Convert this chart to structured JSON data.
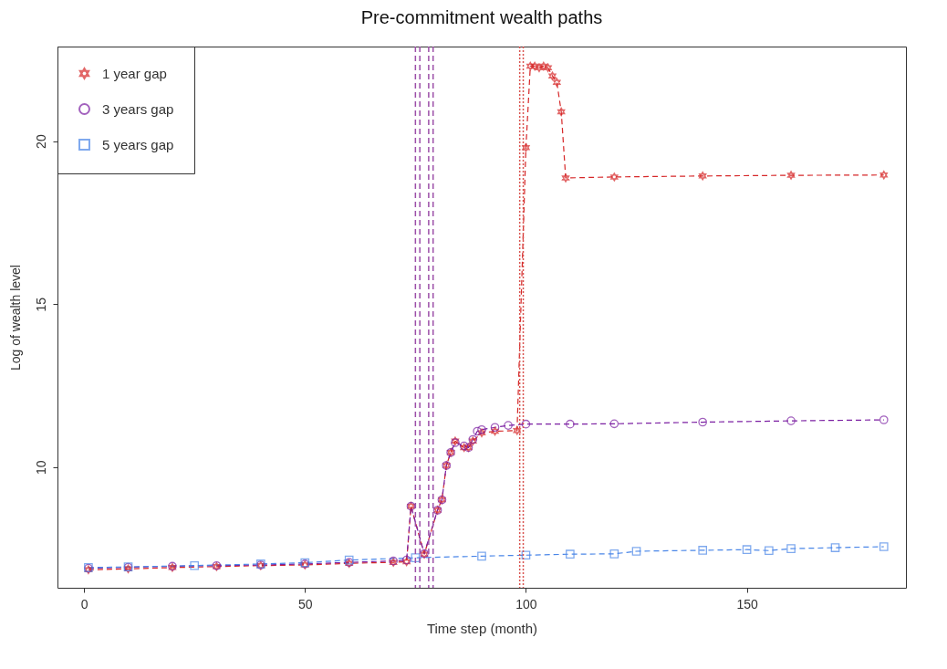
{
  "chart_data": {
    "type": "line",
    "title": "Pre-commitment wealth paths",
    "xlabel": "Time step (month)",
    "ylabel": "Log of wealth level",
    "xlim": [
      -6,
      186
    ],
    "xticks": [
      0,
      50,
      100,
      150
    ],
    "ylim": [
      6.3,
      22.9
    ],
    "yticks": [
      10,
      15,
      20
    ],
    "grid": false,
    "legend": "top left",
    "line_style": "dashed",
    "series": [
      {
        "name": "1 year gap",
        "color": "#d62728",
        "marker": "star",
        "x": [
          1,
          10,
          20,
          30,
          40,
          50,
          60,
          70,
          73,
          74,
          77,
          80,
          81,
          82,
          83,
          84,
          86,
          87,
          88,
          90,
          93,
          98,
          100,
          101,
          102,
          103,
          104,
          105,
          106,
          107,
          108,
          109,
          120,
          140,
          160,
          181
        ],
        "values": [
          6.85,
          6.88,
          6.92,
          6.95,
          6.98,
          7.0,
          7.05,
          7.08,
          7.1,
          8.8,
          7.33,
          8.68,
          9.0,
          10.05,
          10.45,
          10.8,
          10.6,
          10.6,
          10.8,
          11.05,
          11.1,
          11.12,
          19.8,
          22.3,
          22.3,
          22.25,
          22.3,
          22.25,
          22.0,
          21.8,
          20.9,
          18.87,
          18.9,
          18.93,
          18.95,
          18.96
        ]
      },
      {
        "name": "3 years gap",
        "color": "#7b1fa2",
        "marker": "circle",
        "x": [
          1,
          10,
          20,
          30,
          40,
          50,
          60,
          70,
          73,
          74,
          77,
          80,
          81,
          82,
          83,
          84,
          86,
          87,
          88,
          89,
          90,
          93,
          96,
          100,
          110,
          120,
          140,
          160,
          181
        ],
        "values": [
          6.9,
          6.93,
          6.96,
          6.98,
          7.0,
          7.03,
          7.08,
          7.12,
          7.15,
          8.8,
          7.35,
          8.68,
          9.0,
          10.05,
          10.45,
          10.75,
          10.65,
          10.6,
          10.85,
          11.1,
          11.15,
          11.22,
          11.28,
          11.32,
          11.32,
          11.33,
          11.38,
          11.42,
          11.45
        ]
      },
      {
        "name": "5 years gap",
        "color": "#4a86e8",
        "marker": "square",
        "x": [
          1,
          10,
          25,
          40,
          50,
          60,
          75,
          90,
          100,
          110,
          120,
          125,
          140,
          150,
          155,
          160,
          170,
          181
        ],
        "values": [
          6.92,
          6.94,
          6.98,
          7.03,
          7.07,
          7.15,
          7.22,
          7.27,
          7.3,
          7.33,
          7.34,
          7.42,
          7.45,
          7.47,
          7.44,
          7.5,
          7.53,
          7.56
        ]
      }
    ],
    "ref_lines": [
      {
        "axis": "x",
        "value": 75,
        "color": "#9c4fa8",
        "line_style": "dashed"
      },
      {
        "axis": "x",
        "value": 76,
        "color": "#9c4fa8",
        "line_style": "dashed"
      },
      {
        "axis": "x",
        "value": 78,
        "color": "#9c4fa8",
        "line_style": "dashed"
      },
      {
        "axis": "x",
        "value": 79,
        "color": "#9c4fa8",
        "line_style": "dashed"
      },
      {
        "axis": "x",
        "value": 98.6,
        "color": "#d9534f",
        "line_style": "dotted"
      },
      {
        "axis": "x",
        "value": 99.4,
        "color": "#d9534f",
        "line_style": "dotted"
      }
    ]
  }
}
